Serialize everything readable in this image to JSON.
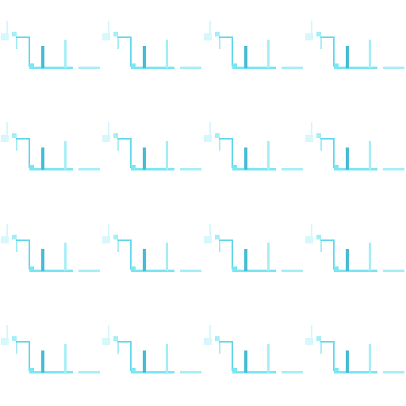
{
  "sprite_sheet": {
    "rows": 4,
    "columns": 4,
    "background": "#ffffff",
    "palette": {
      "pale": "#d6f7fb",
      "light": "#a6eef6",
      "cyan": "#7ce6f2",
      "medium": "#66d9ea",
      "dark": "#48bcd4"
    },
    "tiles": [
      {
        "row": 1,
        "col": 1
      },
      {
        "row": 1,
        "col": 2
      },
      {
        "row": 1,
        "col": 3
      },
      {
        "row": 1,
        "col": 4
      },
      {
        "row": 2,
        "col": 1
      },
      {
        "row": 2,
        "col": 2
      },
      {
        "row": 2,
        "col": 3
      },
      {
        "row": 2,
        "col": 4
      },
      {
        "row": 3,
        "col": 1
      },
      {
        "row": 3,
        "col": 2
      },
      {
        "row": 3,
        "col": 3
      },
      {
        "row": 3,
        "col": 4
      },
      {
        "row": 4,
        "col": 1
      },
      {
        "row": 4,
        "col": 2
      },
      {
        "row": 4,
        "col": 3
      },
      {
        "row": 4,
        "col": 4
      }
    ]
  }
}
